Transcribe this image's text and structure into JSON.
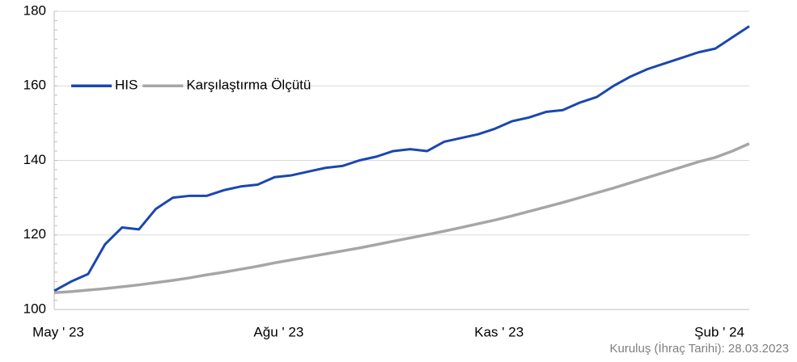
{
  "chart_data": {
    "type": "line",
    "categories": [
      "May ' 23",
      null,
      null,
      null,
      null,
      null,
      null,
      null,
      null,
      null,
      null,
      null,
      null,
      "Ağu ' 23",
      null,
      null,
      null,
      null,
      null,
      null,
      null,
      null,
      null,
      null,
      null,
      null,
      "Kas ' 23",
      null,
      null,
      null,
      null,
      null,
      null,
      null,
      null,
      null,
      null,
      null,
      null,
      "Şub ' 24",
      null,
      null
    ],
    "series": [
      {
        "name": "HIS",
        "color": "#1a47b0",
        "values": [
          105,
          107.5,
          109.5,
          117.5,
          122,
          121.5,
          127,
          130,
          130.5,
          130.5,
          132,
          133,
          133.5,
          135.5,
          136,
          137,
          138,
          138.5,
          140,
          141,
          142.5,
          143,
          142.5,
          145,
          146,
          147,
          148.5,
          150.5,
          151.5,
          153,
          153.5,
          155.5,
          157,
          160,
          162.5,
          164.5,
          166,
          167.5,
          169,
          170,
          173,
          176
        ]
      },
      {
        "name": "Karşılaştırma Ölçütü",
        "color": "#a6a6a6",
        "values": [
          104.5,
          104.8,
          105.2,
          105.6,
          106.1,
          106.6,
          107.2,
          107.8,
          108.5,
          109.3,
          110,
          110.8,
          111.6,
          112.5,
          113.3,
          114.1,
          114.9,
          115.7,
          116.5,
          117.4,
          118.3,
          119.2,
          120.1,
          121,
          122,
          123,
          124,
          125.1,
          126.3,
          127.5,
          128.7,
          130,
          131.3,
          132.6,
          134,
          135.4,
          136.8,
          138.2,
          139.6,
          140.8,
          142.5,
          144.5
        ]
      }
    ],
    "ylim": [
      100,
      180
    ],
    "yticks": [
      100,
      120,
      140,
      160,
      180
    ],
    "grid": true,
    "legend": "upper left",
    "annotation": "Kuruluş (İhraç Tarihi): 28.03.2023"
  }
}
